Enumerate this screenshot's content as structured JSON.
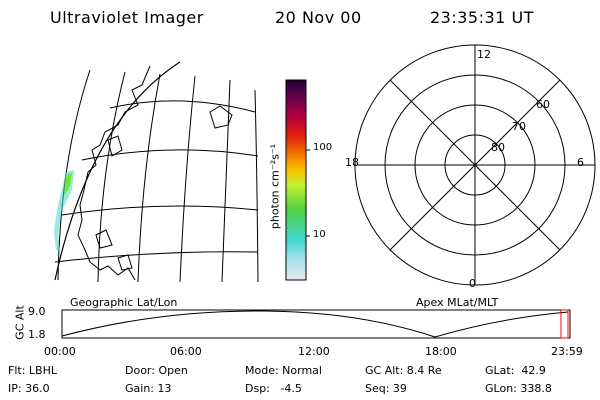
{
  "header": {
    "title": "Ultraviolet Imager",
    "date": "20 Nov 00",
    "time": "23:35:31 UT"
  },
  "geo_map": {
    "label": "Geographic Lat/Lon"
  },
  "colorbar": {
    "title": "photon cm⁻²s⁻¹",
    "ticks": [
      "100",
      "10"
    ]
  },
  "polar_plot": {
    "label": "Apex MLat/MLT",
    "mlt_labels": [
      "12",
      "18",
      "6",
      "0"
    ],
    "lat_labels": [
      "60",
      "70",
      "80"
    ]
  },
  "altitude_plot": {
    "ylabel": "GC Alt",
    "yticks": [
      "9.0",
      "1.8"
    ],
    "xticks": [
      "00:00",
      "06:00",
      "12:00",
      "18:00",
      "23:59"
    ]
  },
  "status": {
    "filter": "Flt: LBHL",
    "ip": "IP: 36.0",
    "door": "Door: Open",
    "gain": "Gain: 13",
    "mode": "Mode: Normal",
    "dsp": "Dsp:   -4.5",
    "gc_alt": "GC Alt: 8.4 Re",
    "seq": "Seq: 39",
    "glat": "GLat:  42.9",
    "glon": "GLon: 338.8"
  },
  "colors": {
    "colorbar_stops": [
      "#e8e8f0",
      "#a8e0e8",
      "#40d8d0",
      "#50d040",
      "#c8f030",
      "#f8c000",
      "#f08000",
      "#e02010",
      "#b00040",
      "#600050",
      "#200030"
    ],
    "aurora": "#70e830",
    "aurora_edge": "#40d8d0",
    "marker": "#ff0000"
  }
}
